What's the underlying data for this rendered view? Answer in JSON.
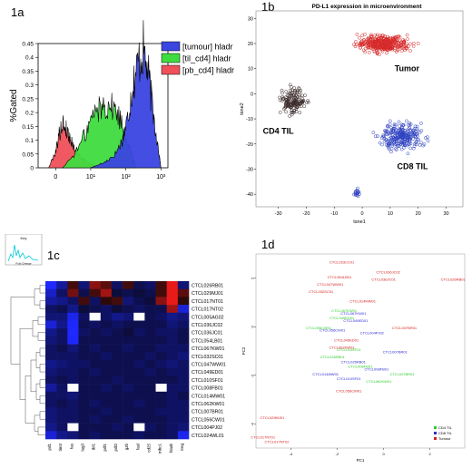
{
  "panels": {
    "a": {
      "label": "1a"
    },
    "b": {
      "label": "1b"
    },
    "c": {
      "label": "1c"
    },
    "d": {
      "label": "1d"
    }
  },
  "chart_data": [
    {
      "id": "1a",
      "type": "area",
      "ylabel": "%Gated",
      "xticks": [
        "0",
        "10¹",
        "10²",
        "10³"
      ],
      "yticks": [
        "0",
        "0.05",
        "0.1",
        "0.15",
        "0.2",
        "0.25",
        "0.3",
        "0.35",
        "0.4",
        "0.45"
      ],
      "ylim": [
        0,
        0.45
      ],
      "series": [
        {
          "name": "[tumour] hladr",
          "color": "#3b45e0",
          "x": [
            1.0,
            1.4,
            1.7,
            1.9,
            2.05,
            2.2,
            2.35,
            2.5,
            2.65,
            2.8,
            2.95,
            3.0
          ],
          "values": [
            0,
            0.02,
            0.05,
            0.1,
            0.18,
            0.3,
            0.38,
            0.43,
            0.33,
            0.18,
            0.05,
            0
          ]
        },
        {
          "name": "[til_cd4] hladr",
          "color": "#3fdc3f",
          "x": [
            0.2,
            0.6,
            0.9,
            1.1,
            1.3,
            1.5,
            1.7,
            1.9,
            2.1,
            2.2,
            2.3
          ],
          "values": [
            0,
            0.06,
            0.14,
            0.2,
            0.22,
            0.23,
            0.21,
            0.16,
            0.08,
            0.03,
            0
          ]
        },
        {
          "name": "[pb_cd4] hladr",
          "color": "#f0505a",
          "x": [
            -0.2,
            0.0,
            0.1,
            0.2,
            0.3,
            0.4,
            0.55,
            0.7,
            0.9,
            1.1,
            1.3
          ],
          "values": [
            0,
            0.06,
            0.12,
            0.16,
            0.14,
            0.11,
            0.07,
            0.04,
            0.02,
            0.01,
            0
          ]
        }
      ]
    },
    {
      "id": "1b",
      "type": "scatter",
      "title": "PD-L1 expression in microenvironment",
      "xlabel": "tsne1",
      "ylabel": "tsne2",
      "xticks": [
        -30,
        -20,
        -10,
        0,
        10,
        20,
        30
      ],
      "yticks": [
        -40,
        -30,
        -20,
        -10,
        0,
        10,
        20,
        30
      ],
      "xlim": [
        -38,
        36
      ],
      "ylim": [
        -45,
        33
      ],
      "annotations": [
        "Tumor",
        "CD4 TIL",
        "CD8 TIL"
      ],
      "clusters": [
        {
          "name": "Tumor",
          "color": "#d62828",
          "center": [
            8,
            20
          ],
          "spread": [
            14,
            5
          ],
          "count": 380
        },
        {
          "name": "CD4 TIL",
          "color": "#3a2a2a",
          "center": [
            -25,
            -3
          ],
          "spread": [
            7,
            8
          ],
          "count": 160
        },
        {
          "name": "CD8 TIL",
          "color": "#2b3fc0",
          "center": [
            14,
            -17
          ],
          "spread": [
            11,
            8
          ],
          "count": 260
        }
      ]
    },
    {
      "id": "1c",
      "type": "heatmap",
      "key_title": "Key",
      "key_xlabel": "Fold Change",
      "columns": [
        "pd1",
        "tim3",
        "fas",
        "lag3",
        "tbl1",
        "pdl1",
        "pdl2",
        "gzb",
        "fasl",
        "cd25",
        "mhc1",
        "hladr",
        "treg"
      ],
      "rows": [
        "CTCL026RB01",
        "CTCL029MJ01",
        "CTCL017NT01",
        "CTCL017NT02",
        "CTCL005AG02",
        "CTCL036JC02",
        "CTCL036JC01",
        "CTCL054LB01",
        "CTCL067KW01",
        "CTCL032SC01",
        "CTCL047WW01",
        "CTCL049ED01",
        "CTCL010SF01",
        "CTCL008FB01",
        "CTCL014MW01",
        "CTCL062KW01",
        "CTCL007BR01",
        "CTCL056CW01",
        "CTCL004PJ02",
        "CTCL024WL01"
      ],
      "values": [
        [
          -1.2,
          -0.6,
          0.2,
          -0.4,
          0.5,
          0.3,
          -0.3,
          0.2,
          -0.2,
          -0.3,
          0.2,
          0.9,
          -0.4
        ],
        [
          -0.8,
          -0.3,
          0.4,
          -0.2,
          0.2,
          0.6,
          -0.1,
          -0.2,
          -0.1,
          -0.2,
          0.2,
          0.9,
          0.3
        ],
        [
          -0.6,
          -0.5,
          -0.3,
          0.2,
          -0.3,
          0.1,
          0.2,
          -0.4,
          -0.2,
          -0.1,
          0.5,
          0.9,
          0.1
        ],
        [
          -0.3,
          -0.2,
          -0.5,
          -0.1,
          -0.2,
          -0.3,
          -0.1,
          -0.2,
          -0.3,
          -0.2,
          -0.2,
          0.6,
          -0.9
        ],
        [
          -0.4,
          -0.4,
          -1.0,
          -0.3,
          null,
          -0.3,
          -0.5,
          -0.4,
          null,
          -0.2,
          -0.3,
          -0.5,
          -0.4
        ],
        [
          -0.9,
          -0.5,
          -1.1,
          -0.2,
          -0.3,
          -0.2,
          -0.3,
          -0.2,
          -0.2,
          -0.2,
          -0.2,
          -0.4,
          -0.3
        ],
        [
          -0.5,
          -0.3,
          -1.2,
          -0.3,
          -0.2,
          -0.3,
          -0.2,
          -0.1,
          -0.3,
          -0.2,
          -0.3,
          -0.3,
          -0.2
        ],
        [
          -0.4,
          -0.3,
          -1.1,
          -0.2,
          -0.2,
          -0.2,
          -0.2,
          -0.2,
          -0.2,
          -0.2,
          -0.2,
          -0.3,
          -0.2
        ],
        [
          -0.3,
          -0.2,
          -0.4,
          -0.2,
          -0.3,
          -0.2,
          -0.2,
          -0.3,
          -0.2,
          -0.2,
          -0.3,
          -0.3,
          -0.3
        ],
        [
          -0.3,
          -0.3,
          -0.3,
          -0.2,
          -0.2,
          -0.3,
          -0.2,
          -0.2,
          -0.2,
          -0.3,
          -0.2,
          -0.3,
          -0.4
        ],
        [
          -0.5,
          -0.4,
          -0.3,
          -0.3,
          -0.2,
          -0.2,
          -0.2,
          -0.2,
          -0.3,
          -0.2,
          -0.3,
          -0.4,
          -0.3
        ],
        [
          -0.4,
          -0.3,
          -0.3,
          -0.2,
          -0.3,
          -0.2,
          -0.2,
          -0.2,
          -0.2,
          -0.3,
          -0.2,
          -0.3,
          -0.3
        ],
        [
          -0.3,
          -0.2,
          -0.3,
          -0.2,
          -0.2,
          -0.2,
          -0.3,
          -0.2,
          -0.2,
          -0.2,
          -0.2,
          -0.2,
          -0.3
        ],
        [
          -0.6,
          -0.3,
          null,
          -0.2,
          -0.2,
          -0.3,
          -0.2,
          -0.3,
          -0.2,
          -0.2,
          null,
          -0.3,
          -0.3
        ],
        [
          -0.3,
          -0.3,
          -0.4,
          -0.2,
          -0.2,
          -0.2,
          -0.2,
          -0.2,
          -0.2,
          -0.2,
          -0.2,
          -0.3,
          -0.2
        ],
        [
          -0.3,
          -0.2,
          -0.3,
          -0.2,
          -0.3,
          -0.2,
          -0.2,
          -0.2,
          -0.3,
          -0.2,
          -0.2,
          -0.3,
          -0.3
        ],
        [
          -0.4,
          -0.3,
          -0.3,
          -0.2,
          -0.2,
          -0.3,
          -0.2,
          -0.2,
          -0.2,
          -0.2,
          -0.3,
          -0.3,
          -0.3
        ],
        [
          -0.4,
          -0.3,
          -0.3,
          -0.2,
          -0.3,
          -0.2,
          -0.2,
          -0.3,
          -0.2,
          -0.2,
          -0.2,
          -0.3,
          -0.3
        ],
        [
          -0.5,
          -0.3,
          null,
          -0.2,
          -0.2,
          -0.2,
          -0.3,
          -0.2,
          null,
          -0.3,
          -0.2,
          -0.3,
          -0.4
        ],
        [
          -0.9,
          -0.5,
          -0.4,
          -0.2,
          -0.3,
          -0.2,
          -0.2,
          -0.2,
          -0.3,
          -0.2,
          -0.2,
          -0.3,
          -1.0
        ]
      ]
    },
    {
      "id": "1d",
      "type": "scatter",
      "xlabel": "PC1",
      "ylabel": "PC2",
      "xticks": [
        "-4",
        "-2",
        "0",
        "2"
      ],
      "yticks": [
        "-4",
        "-2",
        "0",
        "2"
      ],
      "xlim": [
        -5.5,
        3.5
      ],
      "ylim": [
        -5,
        3
      ],
      "legend": [
        {
          "name": "CD4 TIL",
          "color": "#2ecc2e"
        },
        {
          "name": "CD8 TIL",
          "color": "#2b2bd0"
        },
        {
          "name": "Tumour",
          "color": "#d62020"
        }
      ],
      "legend_position": "bottom-right",
      "points": [
        {
          "label": "CTCL023CC01",
          "group": "Tumour",
          "x": -1.8,
          "y": 2.6
        },
        {
          "label": "CTCL036JC02",
          "group": "Tumour",
          "x": 0.2,
          "y": 2.2
        },
        {
          "label": "CTCL054LB01",
          "group": "Tumour",
          "x": -1.9,
          "y": 2.0
        },
        {
          "label": "CTCL036JC01",
          "group": "Tumour",
          "x": 0.0,
          "y": 1.9
        },
        {
          "label": "CTCL026RB01",
          "group": "Tumour",
          "x": 3.0,
          "y": 1.9
        },
        {
          "label": "CTCL047WW01",
          "group": "Tumour",
          "x": -2.3,
          "y": 1.7
        },
        {
          "label": "CTCL032SC01",
          "group": "Tumour",
          "x": -2.7,
          "y": 1.4
        },
        {
          "label": "CTCL014MW01",
          "group": "Tumour",
          "x": -0.9,
          "y": 1.0
        },
        {
          "label": "CTCL067KW01",
          "group": "CD4 TIL",
          "x": -1.7,
          "y": 0.6
        },
        {
          "label": "CTCL067KW01",
          "group": "CD8 TIL",
          "x": -1.3,
          "y": 0.5
        },
        {
          "label": "CTCL049ED01",
          "group": "CD4 TIL",
          "x": -1.8,
          "y": 0.3
        },
        {
          "label": "CTCL049ED01",
          "group": "CD8 TIL",
          "x": -1.2,
          "y": 0.2
        },
        {
          "label": "CTCL056CW01",
          "group": "CD4 TIL",
          "x": -2.8,
          "y": -0.1
        },
        {
          "label": "CTCL056CW01",
          "group": "CD8 TIL",
          "x": -2.2,
          "y": -0.2
        },
        {
          "label": "CTCL004PJ02",
          "group": "CD8 TIL",
          "x": -0.5,
          "y": -0.3
        },
        {
          "label": "CTCL007BR01",
          "group": "Tumour",
          "x": 0.9,
          "y": -0.1
        },
        {
          "label": "CTCL049ED01",
          "group": "Tumour",
          "x": -1.6,
          "y": -0.6
        },
        {
          "label": "CTCL062KW01",
          "group": "Tumour",
          "x": -1.8,
          "y": -0.9
        },
        {
          "label": "CTCL010SF01",
          "group": "CD4 TIL",
          "x": -1.5,
          "y": -1.0
        },
        {
          "label": "CTCL007BR01",
          "group": "CD8 TIL",
          "x": 0.5,
          "y": -1.1
        },
        {
          "label": "CTCL026RB01",
          "group": "CD4 TIL",
          "x": -2.2,
          "y": -1.3
        },
        {
          "label": "CTCL026RB01",
          "group": "CD8 TIL",
          "x": -1.3,
          "y": -1.5
        },
        {
          "label": "CTCL008FB01",
          "group": "CD4 TIL",
          "x": -1.0,
          "y": -1.7
        },
        {
          "label": "CTCL008FB01",
          "group": "CD8 TIL",
          "x": -0.3,
          "y": -1.8
        },
        {
          "label": "CTCL014MW01",
          "group": "CD8 TIL",
          "x": -2.5,
          "y": -2.0
        },
        {
          "label": "CTCL010SF01",
          "group": "CD8 TIL",
          "x": -1.5,
          "y": -2.2
        },
        {
          "label": "CTCL062KW01",
          "group": "CD4 TIL",
          "x": -0.2,
          "y": -2.3
        },
        {
          "label": "CTCL007BR01",
          "group": "CD4 TIL",
          "x": 0.8,
          "y": -2.0
        },
        {
          "label": "CTCL056CW01",
          "group": "Tumour",
          "x": -1.5,
          "y": -2.7
        },
        {
          "label": "CTCL029MJ01",
          "group": "Tumour",
          "x": -4.8,
          "y": -3.8
        },
        {
          "label": "CTCL017NT01",
          "group": "Tumour",
          "x": -5.2,
          "y": -4.6
        },
        {
          "label": "CTCL017NT02",
          "group": "Tumour",
          "x": -4.6,
          "y": -4.8
        }
      ]
    }
  ]
}
